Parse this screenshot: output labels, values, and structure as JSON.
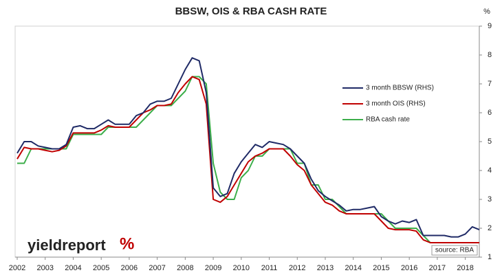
{
  "chart_data": {
    "type": "line",
    "title": "BBSW, OIS & RBA CASH RATE",
    "y2_unit": "%",
    "source": "source: RBA",
    "logo": "yieldreport",
    "logo_mark": "%",
    "x": [
      2002,
      2002.25,
      2002.5,
      2002.75,
      2003,
      2003.25,
      2003.5,
      2003.75,
      2004,
      2004.25,
      2004.5,
      2004.75,
      2005,
      2005.25,
      2005.5,
      2005.75,
      2006,
      2006.25,
      2006.5,
      2006.75,
      2007,
      2007.25,
      2007.5,
      2007.75,
      2008,
      2008.25,
      2008.5,
      2008.75,
      2009,
      2009.25,
      2009.5,
      2009.75,
      2010,
      2010.25,
      2010.5,
      2010.75,
      2011,
      2011.25,
      2011.5,
      2011.75,
      2012,
      2012.25,
      2012.5,
      2012.75,
      2013,
      2013.25,
      2013.5,
      2013.75,
      2014,
      2014.25,
      2014.5,
      2014.75,
      2015,
      2015.25,
      2015.5,
      2015.75,
      2016,
      2016.25,
      2016.5,
      2016.75,
      2017,
      2017.25,
      2017.5,
      2017.75,
      2018,
      2018.25,
      2018.5
    ],
    "series": [
      {
        "name": "3 month BBSW (RHS)",
        "color": "#1f2a66",
        "axis": "y2",
        "values": [
          4.6,
          5.0,
          5.0,
          4.85,
          4.8,
          4.75,
          4.75,
          4.9,
          5.5,
          5.55,
          5.45,
          5.45,
          5.6,
          5.75,
          5.6,
          5.6,
          5.6,
          5.9,
          6.0,
          6.3,
          6.4,
          6.4,
          6.5,
          7.0,
          7.5,
          7.9,
          7.8,
          6.7,
          3.4,
          3.1,
          3.2,
          3.9,
          4.3,
          4.6,
          4.9,
          4.8,
          5.0,
          4.95,
          4.9,
          4.75,
          4.5,
          4.25,
          3.7,
          3.3,
          3.1,
          2.95,
          2.8,
          2.6,
          2.65,
          2.65,
          2.7,
          2.75,
          2.4,
          2.25,
          2.15,
          2.25,
          2.2,
          2.3,
          1.75,
          1.75,
          1.75,
          1.75,
          1.7,
          1.7,
          1.8,
          2.05,
          1.95
        ]
      },
      {
        "name": "3 month OIS (RHS)",
        "color": "#c00000",
        "axis": "y2",
        "values": [
          4.4,
          4.8,
          4.75,
          4.75,
          4.7,
          4.65,
          4.7,
          4.85,
          5.3,
          5.3,
          5.3,
          5.3,
          5.4,
          5.55,
          5.5,
          5.5,
          5.5,
          5.75,
          6.0,
          6.1,
          6.25,
          6.25,
          6.3,
          6.7,
          7.0,
          7.25,
          7.15,
          6.3,
          3.0,
          2.9,
          3.1,
          3.5,
          3.9,
          4.3,
          4.5,
          4.6,
          4.75,
          4.75,
          4.75,
          4.5,
          4.2,
          4.0,
          3.5,
          3.2,
          2.9,
          2.8,
          2.6,
          2.5,
          2.5,
          2.5,
          2.5,
          2.5,
          2.25,
          2.0,
          1.95,
          1.95,
          1.95,
          1.9,
          1.6,
          1.5,
          1.5,
          1.5,
          1.5,
          1.5,
          1.5,
          1.5,
          1.5
        ]
      },
      {
        "name": "RBA cash rate",
        "color": "#3cae4a",
        "axis": "y2",
        "values": [
          4.25,
          4.25,
          4.75,
          4.75,
          4.75,
          4.75,
          4.75,
          4.75,
          5.25,
          5.25,
          5.25,
          5.25,
          5.25,
          5.5,
          5.5,
          5.5,
          5.5,
          5.5,
          5.75,
          6.0,
          6.25,
          6.25,
          6.25,
          6.5,
          6.75,
          7.25,
          7.25,
          7.0,
          4.25,
          3.25,
          3.0,
          3.0,
          3.75,
          4.0,
          4.5,
          4.5,
          4.75,
          4.75,
          4.75,
          4.75,
          4.25,
          4.25,
          3.5,
          3.5,
          3.0,
          3.0,
          2.75,
          2.5,
          2.5,
          2.5,
          2.5,
          2.5,
          2.5,
          2.25,
          2.0,
          2.0,
          2.0,
          2.0,
          1.75,
          1.5,
          1.5,
          1.5,
          1.5,
          1.5,
          1.5,
          1.5,
          1.5
        ]
      }
    ],
    "xlim": [
      2002,
      2018.5
    ],
    "xticks": [
      2002,
      2003,
      2004,
      2005,
      2006,
      2007,
      2008,
      2009,
      2010,
      2011,
      2012,
      2013,
      2014,
      2015,
      2016,
      2017,
      2018
    ],
    "y2lim": [
      1,
      9
    ],
    "y2ticks": [
      1,
      2,
      3,
      4,
      5,
      6,
      7,
      8,
      9
    ],
    "legend": "right"
  }
}
